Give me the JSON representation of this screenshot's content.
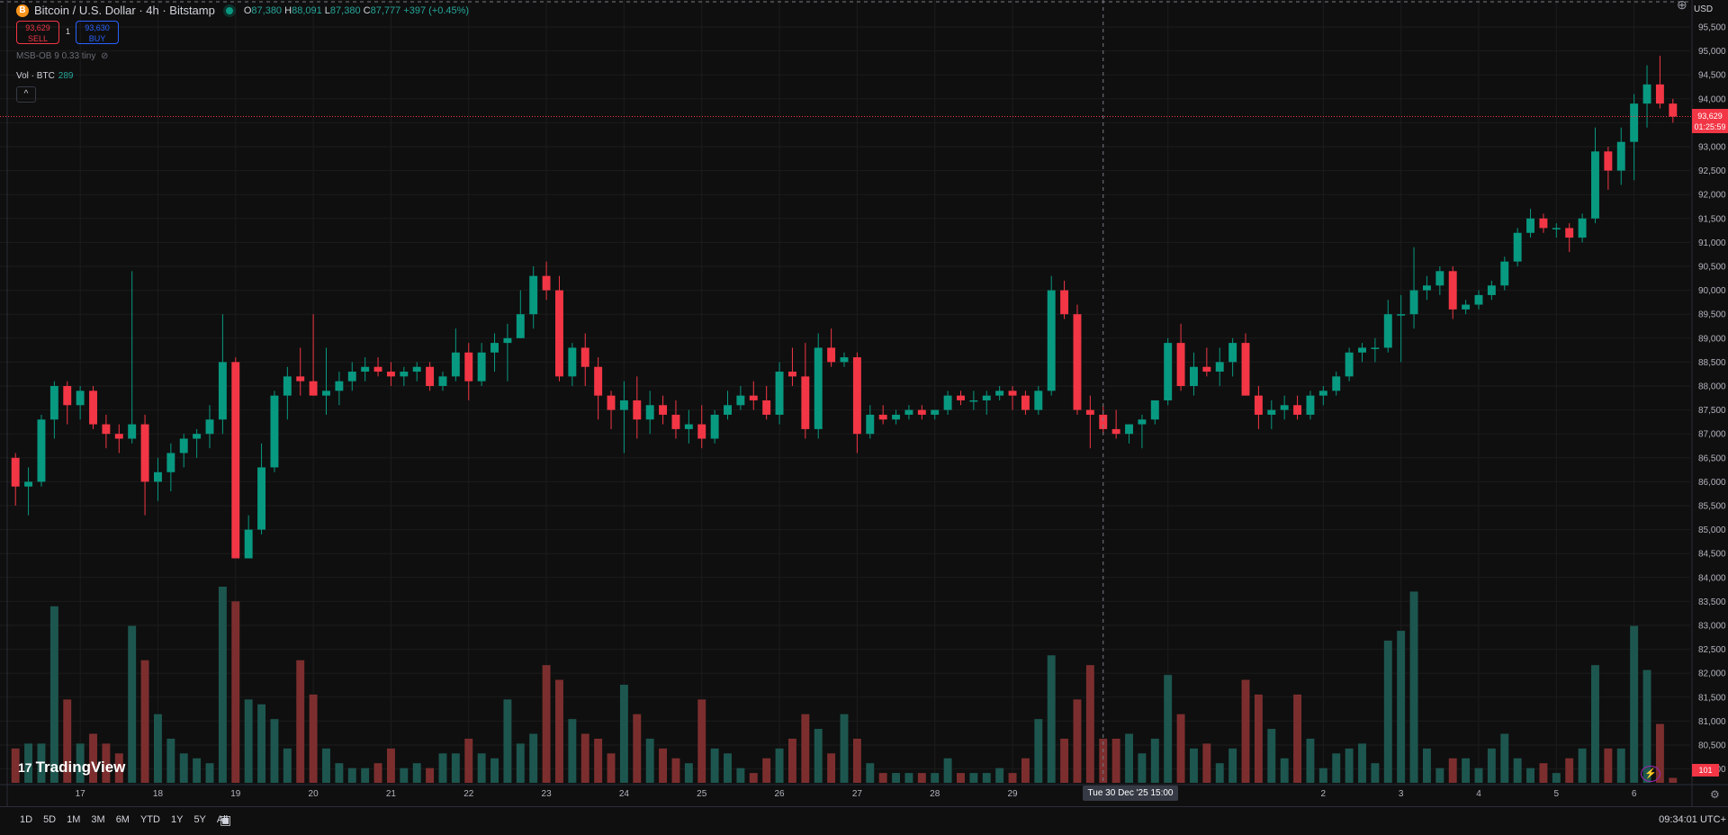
{
  "header": {
    "coin_icon": "B",
    "symbol": "Bitcoin / U.S. Dollar · 4h · Bitstamp",
    "open_label": "O",
    "open": "87,380",
    "high_label": "H",
    "high": "88,091",
    "low_label": "L",
    "low": "87,380",
    "close_label": "C",
    "close": "87,777",
    "change": "+397 (+0.45%)"
  },
  "trade": {
    "sell_price": "93,629",
    "sell_label": "SELL",
    "spread": "1",
    "buy_price": "93,630",
    "buy_label": "BUY"
  },
  "indicator": {
    "name": "MSB-OB 9 0.33 tiny",
    "eye_icon": "eye-off-icon"
  },
  "volume_legend": {
    "label": "Vol · BTC",
    "value": "289"
  },
  "collapse_icon": "^",
  "logo": {
    "mark": "17",
    "text": "TradingView"
  },
  "axis": {
    "currency": "USD",
    "last_price": "93,629",
    "countdown": "01:25:59",
    "crosshair_time": "Tue 30 Dec '25   15:00",
    "volume_last": "101"
  },
  "toolbar": {
    "ranges": [
      "1D",
      "5D",
      "1M",
      "3M",
      "6M",
      "YTD",
      "1Y",
      "5Y",
      "All"
    ],
    "calendar_icon": "calendar-icon",
    "clock": "09:34:01 UTC+"
  },
  "colors": {
    "up": "#089981",
    "down": "#f23645",
    "volume_up": "#1d564f",
    "volume_down": "#7c2e2e",
    "background": "#0f0f0f"
  },
  "chart_data": {
    "type": "candlestick",
    "title": "Bitcoin / U.S. Dollar · 4h · Bitstamp",
    "interval": "4h",
    "price_range": [
      80000,
      95500
    ],
    "yticks": [
      80000,
      80500,
      81000,
      81500,
      82000,
      82500,
      83000,
      83500,
      84000,
      84500,
      85000,
      85500,
      86000,
      86500,
      87000,
      87500,
      88000,
      88500,
      89000,
      89500,
      90000,
      90500,
      91000,
      91500,
      92000,
      92500,
      93000,
      93500,
      94000,
      94500,
      95000,
      95500
    ],
    "ytick_labels": [
      "80,000",
      "80,500",
      "81,000",
      "81,500",
      "82,000",
      "82,500",
      "83,000",
      "83,500",
      "84,000",
      "84,500",
      "85,000",
      "85,500",
      "86,000",
      "86,500",
      "87,000",
      "87,500",
      "88,000",
      "88,500",
      "89,000",
      "89,500",
      "90,000",
      "90,500",
      "91,000",
      "91,500",
      "92,000",
      "92,500",
      "93,000",
      "93,500",
      "94,000",
      "94,500",
      "95,000",
      "95,500"
    ],
    "x_labels": [
      {
        "index": 5,
        "label": "17"
      },
      {
        "index": 11,
        "label": "18"
      },
      {
        "index": 17,
        "label": "19"
      },
      {
        "index": 23,
        "label": "20"
      },
      {
        "index": 29,
        "label": "21"
      },
      {
        "index": 35,
        "label": "22"
      },
      {
        "index": 41,
        "label": "23"
      },
      {
        "index": 47,
        "label": "24"
      },
      {
        "index": 53,
        "label": "25"
      },
      {
        "index": 59,
        "label": "26"
      },
      {
        "index": 65,
        "label": "27"
      },
      {
        "index": 71,
        "label": "28"
      },
      {
        "index": 77,
        "label": "29"
      },
      {
        "index": 89,
        "label": "2026"
      },
      {
        "index": 101,
        "label": "2"
      },
      {
        "index": 107,
        "label": "3"
      },
      {
        "index": 113,
        "label": "4"
      },
      {
        "index": 119,
        "label": "5"
      },
      {
        "index": 125,
        "label": "6"
      }
    ],
    "candles": [
      {
        "o": 86500,
        "h": 86600,
        "l": 85500,
        "c": 85900,
        "v": 700
      },
      {
        "o": 85900,
        "h": 86300,
        "l": 85300,
        "c": 86000,
        "v": 800
      },
      {
        "o": 86000,
        "h": 87400,
        "l": 85900,
        "c": 87300,
        "v": 800
      },
      {
        "o": 87300,
        "h": 88100,
        "l": 86900,
        "c": 88000,
        "v": 3600
      },
      {
        "o": 88000,
        "h": 88100,
        "l": 87200,
        "c": 87600,
        "v": 1700
      },
      {
        "o": 87600,
        "h": 88000,
        "l": 87300,
        "c": 87900,
        "v": 800
      },
      {
        "o": 87900,
        "h": 88000,
        "l": 87100,
        "c": 87200,
        "v": 1000
      },
      {
        "o": 87200,
        "h": 87400,
        "l": 86700,
        "c": 87000,
        "v": 800
      },
      {
        "o": 87000,
        "h": 87200,
        "l": 86600,
        "c": 86900,
        "v": 600
      },
      {
        "o": 86900,
        "h": 90400,
        "l": 86800,
        "c": 87200,
        "v": 3200
      },
      {
        "o": 87200,
        "h": 87400,
        "l": 85300,
        "c": 86000,
        "v": 2500
      },
      {
        "o": 86000,
        "h": 86500,
        "l": 85600,
        "c": 86200,
        "v": 1400
      },
      {
        "o": 86200,
        "h": 86800,
        "l": 85800,
        "c": 86600,
        "v": 900
      },
      {
        "o": 86600,
        "h": 87000,
        "l": 86300,
        "c": 86900,
        "v": 600
      },
      {
        "o": 86900,
        "h": 87100,
        "l": 86500,
        "c": 87000,
        "v": 500
      },
      {
        "o": 87000,
        "h": 87600,
        "l": 86700,
        "c": 87300,
        "v": 400
      },
      {
        "o": 87300,
        "h": 89500,
        "l": 87000,
        "c": 88500,
        "v": 4000
      },
      {
        "o": 88500,
        "h": 88600,
        "l": 84400,
        "c": 84400,
        "v": 3700
      },
      {
        "o": 84400,
        "h": 85300,
        "l": 84400,
        "c": 85000,
        "v": 1700
      },
      {
        "o": 85000,
        "h": 86800,
        "l": 84900,
        "c": 86300,
        "v": 1600
      },
      {
        "o": 86300,
        "h": 87900,
        "l": 86200,
        "c": 87800,
        "v": 1300
      },
      {
        "o": 87800,
        "h": 88400,
        "l": 87300,
        "c": 88200,
        "v": 700
      },
      {
        "o": 88200,
        "h": 88800,
        "l": 87800,
        "c": 88100,
        "v": 2500
      },
      {
        "o": 88100,
        "h": 89500,
        "l": 87800,
        "c": 87800,
        "v": 1800
      },
      {
        "o": 87800,
        "h": 88800,
        "l": 87400,
        "c": 87900,
        "v": 700
      },
      {
        "o": 87900,
        "h": 88300,
        "l": 87600,
        "c": 88100,
        "v": 400
      },
      {
        "o": 88100,
        "h": 88500,
        "l": 87900,
        "c": 88300,
        "v": 300
      },
      {
        "o": 88300,
        "h": 88600,
        "l": 88100,
        "c": 88400,
        "v": 300
      },
      {
        "o": 88400,
        "h": 88600,
        "l": 88200,
        "c": 88300,
        "v": 400
      },
      {
        "o": 88300,
        "h": 88500,
        "l": 88000,
        "c": 88200,
        "v": 700
      },
      {
        "o": 88200,
        "h": 88400,
        "l": 88000,
        "c": 88300,
        "v": 300
      },
      {
        "o": 88300,
        "h": 88500,
        "l": 88100,
        "c": 88400,
        "v": 400
      },
      {
        "o": 88400,
        "h": 88500,
        "l": 87900,
        "c": 88000,
        "v": 300
      },
      {
        "o": 88000,
        "h": 88300,
        "l": 87900,
        "c": 88200,
        "v": 600
      },
      {
        "o": 88200,
        "h": 89200,
        "l": 88100,
        "c": 88700,
        "v": 600
      },
      {
        "o": 88700,
        "h": 88900,
        "l": 87700,
        "c": 88100,
        "v": 900
      },
      {
        "o": 88100,
        "h": 88900,
        "l": 88000,
        "c": 88700,
        "v": 600
      },
      {
        "o": 88700,
        "h": 89100,
        "l": 88300,
        "c": 88900,
        "v": 500
      },
      {
        "o": 88900,
        "h": 89300,
        "l": 88100,
        "c": 89000,
        "v": 1700
      },
      {
        "o": 89000,
        "h": 90000,
        "l": 89000,
        "c": 89500,
        "v": 800
      },
      {
        "o": 89500,
        "h": 90500,
        "l": 89200,
        "c": 90300,
        "v": 1000
      },
      {
        "o": 90300,
        "h": 90600,
        "l": 89800,
        "c": 90000,
        "v": 2400
      },
      {
        "o": 90000,
        "h": 90300,
        "l": 88100,
        "c": 88200,
        "v": 2100
      },
      {
        "o": 88200,
        "h": 88900,
        "l": 88000,
        "c": 88800,
        "v": 1300
      },
      {
        "o": 88800,
        "h": 89100,
        "l": 88000,
        "c": 88400,
        "v": 1000
      },
      {
        "o": 88400,
        "h": 88600,
        "l": 87300,
        "c": 87800,
        "v": 900
      },
      {
        "o": 87800,
        "h": 87900,
        "l": 87100,
        "c": 87500,
        "v": 600
      },
      {
        "o": 87500,
        "h": 88100,
        "l": 86600,
        "c": 87700,
        "v": 2000
      },
      {
        "o": 87700,
        "h": 88200,
        "l": 86900,
        "c": 87300,
        "v": 1400
      },
      {
        "o": 87300,
        "h": 87900,
        "l": 87000,
        "c": 87600,
        "v": 900
      },
      {
        "o": 87600,
        "h": 87800,
        "l": 87200,
        "c": 87400,
        "v": 700
      },
      {
        "o": 87400,
        "h": 87700,
        "l": 86900,
        "c": 87100,
        "v": 500
      },
      {
        "o": 87100,
        "h": 87500,
        "l": 86800,
        "c": 87200,
        "v": 400
      },
      {
        "o": 87200,
        "h": 87600,
        "l": 86700,
        "c": 86900,
        "v": 1700
      },
      {
        "o": 86900,
        "h": 87500,
        "l": 86800,
        "c": 87400,
        "v": 700
      },
      {
        "o": 87400,
        "h": 87900,
        "l": 87300,
        "c": 87600,
        "v": 600
      },
      {
        "o": 87600,
        "h": 88000,
        "l": 87500,
        "c": 87800,
        "v": 300
      },
      {
        "o": 87800,
        "h": 88100,
        "l": 87500,
        "c": 87700,
        "v": 200
      },
      {
        "o": 87700,
        "h": 88000,
        "l": 87300,
        "c": 87400,
        "v": 500
      },
      {
        "o": 87400,
        "h": 88500,
        "l": 87200,
        "c": 88300,
        "v": 700
      },
      {
        "o": 88300,
        "h": 88800,
        "l": 88000,
        "c": 88200,
        "v": 900
      },
      {
        "o": 88200,
        "h": 88900,
        "l": 86900,
        "c": 87100,
        "v": 1400
      },
      {
        "o": 87100,
        "h": 89100,
        "l": 86900,
        "c": 88800,
        "v": 1100
      },
      {
        "o": 88800,
        "h": 89200,
        "l": 88400,
        "c": 88500,
        "v": 600
      },
      {
        "o": 88500,
        "h": 88700,
        "l": 88400,
        "c": 88600,
        "v": 1400
      },
      {
        "o": 88600,
        "h": 88700,
        "l": 86600,
        "c": 87000,
        "v": 900
      },
      {
        "o": 87000,
        "h": 87600,
        "l": 86900,
        "c": 87400,
        "v": 400
      },
      {
        "o": 87400,
        "h": 87600,
        "l": 87200,
        "c": 87300,
        "v": 200
      },
      {
        "o": 87300,
        "h": 87500,
        "l": 87200,
        "c": 87400,
        "v": 200
      },
      {
        "o": 87400,
        "h": 87600,
        "l": 87300,
        "c": 87500,
        "v": 200
      },
      {
        "o": 87500,
        "h": 87600,
        "l": 87300,
        "c": 87400,
        "v": 200
      },
      {
        "o": 87400,
        "h": 87500,
        "l": 87300,
        "c": 87500,
        "v": 200
      },
      {
        "o": 87500,
        "h": 87900,
        "l": 87400,
        "c": 87800,
        "v": 500
      },
      {
        "o": 87800,
        "h": 87900,
        "l": 87600,
        "c": 87700,
        "v": 200
      },
      {
        "o": 87700,
        "h": 87900,
        "l": 87500,
        "c": 87700,
        "v": 200
      },
      {
        "o": 87700,
        "h": 87900,
        "l": 87400,
        "c": 87800,
        "v": 200
      },
      {
        "o": 87800,
        "h": 88000,
        "l": 87700,
        "c": 87900,
        "v": 300
      },
      {
        "o": 87900,
        "h": 88000,
        "l": 87500,
        "c": 87800,
        "v": 200
      },
      {
        "o": 87800,
        "h": 87900,
        "l": 87400,
        "c": 87500,
        "v": 500
      },
      {
        "o": 87500,
        "h": 88000,
        "l": 87400,
        "c": 87900,
        "v": 1300
      },
      {
        "o": 87900,
        "h": 90300,
        "l": 87800,
        "c": 90000,
        "v": 2600
      },
      {
        "o": 90000,
        "h": 90200,
        "l": 89400,
        "c": 89500,
        "v": 900
      },
      {
        "o": 89500,
        "h": 89700,
        "l": 87400,
        "c": 87500,
        "v": 1700
      },
      {
        "o": 87500,
        "h": 87800,
        "l": 86700,
        "c": 87400,
        "v": 2400
      },
      {
        "o": 87400,
        "h": 87600,
        "l": 87000,
        "c": 87100,
        "v": 900
      },
      {
        "o": 87100,
        "h": 87500,
        "l": 86900,
        "c": 87000,
        "v": 900
      },
      {
        "o": 87000,
        "h": 87200,
        "l": 86800,
        "c": 87200,
        "v": 1000
      },
      {
        "o": 87200,
        "h": 87400,
        "l": 86700,
        "c": 87300,
        "v": 600
      },
      {
        "o": 87300,
        "h": 87700,
        "l": 87200,
        "c": 87700,
        "v": 900
      },
      {
        "o": 87700,
        "h": 89000,
        "l": 87600,
        "c": 88900,
        "v": 2200
      },
      {
        "o": 88900,
        "h": 89300,
        "l": 87900,
        "c": 88000,
        "v": 1400
      },
      {
        "o": 88000,
        "h": 88700,
        "l": 87800,
        "c": 88400,
        "v": 700
      },
      {
        "o": 88400,
        "h": 88800,
        "l": 88200,
        "c": 88300,
        "v": 800
      },
      {
        "o": 88300,
        "h": 88800,
        "l": 88000,
        "c": 88500,
        "v": 400
      },
      {
        "o": 88500,
        "h": 89000,
        "l": 88200,
        "c": 88900,
        "v": 700
      },
      {
        "o": 88900,
        "h": 89100,
        "l": 87800,
        "c": 87800,
        "v": 2100
      },
      {
        "o": 87800,
        "h": 88000,
        "l": 87100,
        "c": 87400,
        "v": 1800
      },
      {
        "o": 87400,
        "h": 87700,
        "l": 87100,
        "c": 87500,
        "v": 1100
      },
      {
        "o": 87500,
        "h": 87800,
        "l": 87300,
        "c": 87600,
        "v": 500
      },
      {
        "o": 87600,
        "h": 87800,
        "l": 87300,
        "c": 87400,
        "v": 1800
      },
      {
        "o": 87400,
        "h": 87900,
        "l": 87300,
        "c": 87800,
        "v": 900
      },
      {
        "o": 87800,
        "h": 88000,
        "l": 87600,
        "c": 87900,
        "v": 300
      },
      {
        "o": 87900,
        "h": 88300,
        "l": 87800,
        "c": 88200,
        "v": 600
      },
      {
        "o": 88200,
        "h": 88800,
        "l": 88100,
        "c": 88700,
        "v": 700
      },
      {
        "o": 88700,
        "h": 88900,
        "l": 88500,
        "c": 88800,
        "v": 800
      },
      {
        "o": 88800,
        "h": 89000,
        "l": 88500,
        "c": 88800,
        "v": 400
      },
      {
        "o": 88800,
        "h": 89800,
        "l": 88700,
        "c": 89500,
        "v": 2900
      },
      {
        "o": 89500,
        "h": 89900,
        "l": 88500,
        "c": 89500,
        "v": 3100
      },
      {
        "o": 89500,
        "h": 90900,
        "l": 89200,
        "c": 90000,
        "v": 3900
      },
      {
        "o": 90000,
        "h": 90300,
        "l": 89800,
        "c": 90100,
        "v": 700
      },
      {
        "o": 90100,
        "h": 90500,
        "l": 89900,
        "c": 90400,
        "v": 300
      },
      {
        "o": 90400,
        "h": 90500,
        "l": 89400,
        "c": 89600,
        "v": 500
      },
      {
        "o": 89600,
        "h": 89800,
        "l": 89500,
        "c": 89700,
        "v": 500
      },
      {
        "o": 89700,
        "h": 90000,
        "l": 89600,
        "c": 89900,
        "v": 300
      },
      {
        "o": 89900,
        "h": 90200,
        "l": 89800,
        "c": 90100,
        "v": 700
      },
      {
        "o": 90100,
        "h": 90700,
        "l": 90000,
        "c": 90600,
        "v": 1000
      },
      {
        "o": 90600,
        "h": 91300,
        "l": 90500,
        "c": 91200,
        "v": 500
      },
      {
        "o": 91200,
        "h": 91700,
        "l": 91100,
        "c": 91500,
        "v": 300
      },
      {
        "o": 91500,
        "h": 91600,
        "l": 91200,
        "c": 91300,
        "v": 400
      },
      {
        "o": 91300,
        "h": 91400,
        "l": 91100,
        "c": 91300,
        "v": 200
      },
      {
        "o": 91300,
        "h": 91400,
        "l": 90800,
        "c": 91100,
        "v": 500
      },
      {
        "o": 91100,
        "h": 91600,
        "l": 91000,
        "c": 91500,
        "v": 700
      },
      {
        "o": 91500,
        "h": 93400,
        "l": 91400,
        "c": 92900,
        "v": 2400
      },
      {
        "o": 92900,
        "h": 93000,
        "l": 92100,
        "c": 92500,
        "v": 700
      },
      {
        "o": 92500,
        "h": 93400,
        "l": 92200,
        "c": 93100,
        "v": 700
      },
      {
        "o": 93100,
        "h": 94100,
        "l": 92300,
        "c": 93900,
        "v": 3200
      },
      {
        "o": 93900,
        "h": 94700,
        "l": 93400,
        "c": 94300,
        "v": 2300
      },
      {
        "o": 94300,
        "h": 94900,
        "l": 93800,
        "c": 93900,
        "v": 1200
      },
      {
        "o": 93900,
        "h": 94000,
        "l": 93500,
        "c": 93629,
        "v": 101
      }
    ],
    "last_price": 93629,
    "crosshair_index": 84,
    "grid": true,
    "legend": "top-left"
  }
}
